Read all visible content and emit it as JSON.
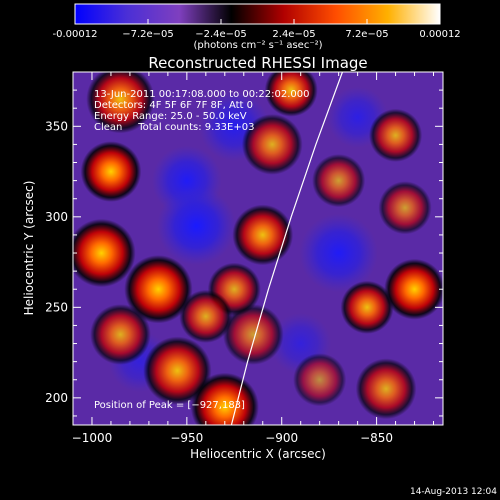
{
  "chart_data": {
    "type": "heatmap",
    "title": "Reconstructed RHESSI Image",
    "xlabel": "Heliocentric X (arcsec)",
    "ylabel": "Heliocentric Y (arcsec)",
    "xlim": [
      -1010,
      -815
    ],
    "ylim": [
      185,
      380
    ],
    "xticks": [
      -1000,
      -950,
      -900,
      -850
    ],
    "xtick_labels": [
      "−1000",
      "−950",
      "−900",
      "−850"
    ],
    "yticks": [
      200,
      250,
      300,
      350
    ],
    "ytick_labels": [
      "200",
      "250",
      "300",
      "350"
    ],
    "colorbar": {
      "min": -0.00012,
      "max": 0.00012,
      "tick_values": [
        -0.00012,
        -7.2e-05,
        -2.4e-05,
        2.4e-05,
        7.2e-05,
        0.00012
      ],
      "tick_labels": [
        "-0.00012",
        "−7.2e−05",
        "−2.4e−05",
        "2.4e−05",
        "7.2e−05",
        "0.00012"
      ],
      "units": "(photons cm⁻² s⁻¹ asec⁻²)",
      "colors": [
        "#0000ff",
        "#4b2fd6",
        "#7f3fbf",
        "#000000",
        "#b00000",
        "#ff4d00",
        "#ffb000",
        "#ffffff"
      ]
    },
    "annotations": [
      "13-Jun-2011 00:17:08.000 to 00:22:02.000",
      "Detectors: 4F 5F 6F 7F 8F, Att 0",
      "Energy Range: 25.0 - 50.0 keV",
      "Clean     Total counts: 9.33E+03"
    ],
    "peak_label": "Position of Peak = [−927,183]",
    "peak": {
      "x": -927,
      "y": 183
    },
    "limb_points": [
      [
        -927,
        183
      ],
      [
        -918,
        220
      ],
      [
        -907,
        260
      ],
      [
        -895,
        300
      ],
      [
        -882,
        340
      ],
      [
        -868,
        380
      ]
    ],
    "blobs": [
      {
        "x": -985,
        "y": 365,
        "s": 9,
        "a": 0.9
      },
      {
        "x": -990,
        "y": 325,
        "s": 8,
        "a": 1.0
      },
      {
        "x": -995,
        "y": 280,
        "s": 9,
        "a": 1.1
      },
      {
        "x": -985,
        "y": 235,
        "s": 8,
        "a": 0.8
      },
      {
        "x": -965,
        "y": 260,
        "s": 9,
        "a": 1.0
      },
      {
        "x": -955,
        "y": 215,
        "s": 9,
        "a": 0.9
      },
      {
        "x": -930,
        "y": 195,
        "s": 9,
        "a": 1.3
      },
      {
        "x": -915,
        "y": 235,
        "s": 8,
        "a": 0.7
      },
      {
        "x": -925,
        "y": 260,
        "s": 7,
        "a": 0.8
      },
      {
        "x": -940,
        "y": 245,
        "s": 7,
        "a": 0.8
      },
      {
        "x": -910,
        "y": 290,
        "s": 8,
        "a": 0.9
      },
      {
        "x": -905,
        "y": 340,
        "s": 8,
        "a": 0.8
      },
      {
        "x": -895,
        "y": 370,
        "s": 7,
        "a": 0.9
      },
      {
        "x": -870,
        "y": 320,
        "s": 7,
        "a": 0.7
      },
      {
        "x": -855,
        "y": 250,
        "s": 7,
        "a": 0.9
      },
      {
        "x": -830,
        "y": 260,
        "s": 8,
        "a": 1.0
      },
      {
        "x": -835,
        "y": 305,
        "s": 7,
        "a": 0.7
      },
      {
        "x": -840,
        "y": 345,
        "s": 7,
        "a": 0.8
      },
      {
        "x": -845,
        "y": 205,
        "s": 8,
        "a": 0.8
      },
      {
        "x": -880,
        "y": 210,
        "s": 7,
        "a": 0.6
      },
      {
        "x": -950,
        "y": 320,
        "s": 8,
        "a": -0.9
      },
      {
        "x": -945,
        "y": 295,
        "s": 9,
        "a": -1.0
      },
      {
        "x": -925,
        "y": 350,
        "s": 8,
        "a": -0.8
      },
      {
        "x": -870,
        "y": 280,
        "s": 9,
        "a": -0.9
      },
      {
        "x": -860,
        "y": 355,
        "s": 7,
        "a": -0.7
      },
      {
        "x": -975,
        "y": 220,
        "s": 7,
        "a": -0.6
      },
      {
        "x": -890,
        "y": 230,
        "s": 7,
        "a": -0.6
      }
    ]
  },
  "footer": {
    "timestamp": "14-Aug-2013 12:04"
  }
}
